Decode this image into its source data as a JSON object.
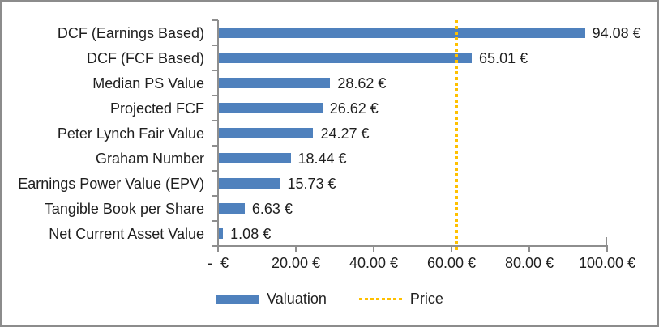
{
  "chart_data": {
    "type": "bar",
    "orientation": "horizontal",
    "title": "",
    "xlabel": "",
    "ylabel": "",
    "categories": [
      "DCF (Earnings Based)",
      "DCF (FCF Based)",
      "Median PS Value",
      "Projected FCF",
      "Peter Lynch Fair Value",
      "Graham Number",
      "Earnings Power Value (EPV)",
      "Tangible Book per Share",
      "Net Current Asset Value"
    ],
    "values": [
      94.08,
      65.01,
      28.62,
      26.62,
      24.27,
      18.44,
      15.73,
      6.63,
      1.08
    ],
    "value_labels": [
      "94.08 €",
      "65.01 €",
      "28.62 €",
      "26.62 €",
      "24.27 €",
      "18.44 €",
      "15.73 €",
      "6.63 €",
      "1.08 €"
    ],
    "price_line_value": 61.2,
    "xlim": [
      0,
      100
    ],
    "x_tick_values": [
      0,
      20,
      40,
      60,
      80,
      100
    ],
    "x_tick_labels": [
      "-  €",
      "20.00 €",
      "40.00 €",
      "60.00 €",
      "80.00 €",
      "100.00 €"
    ],
    "grid": false,
    "legend_position": "bottom",
    "legend": [
      {
        "label": "Valuation",
        "color": "#4F81BD",
        "marker": "bar"
      },
      {
        "label": "Price",
        "color": "#FFC000",
        "marker": "dotted-line"
      }
    ],
    "colors": {
      "bar": "#4F81BD",
      "price_line": "#FFC000",
      "axis": "#8E8E8E",
      "text": "#1F1F1F",
      "frame_border": "#8C8C8C"
    }
  }
}
